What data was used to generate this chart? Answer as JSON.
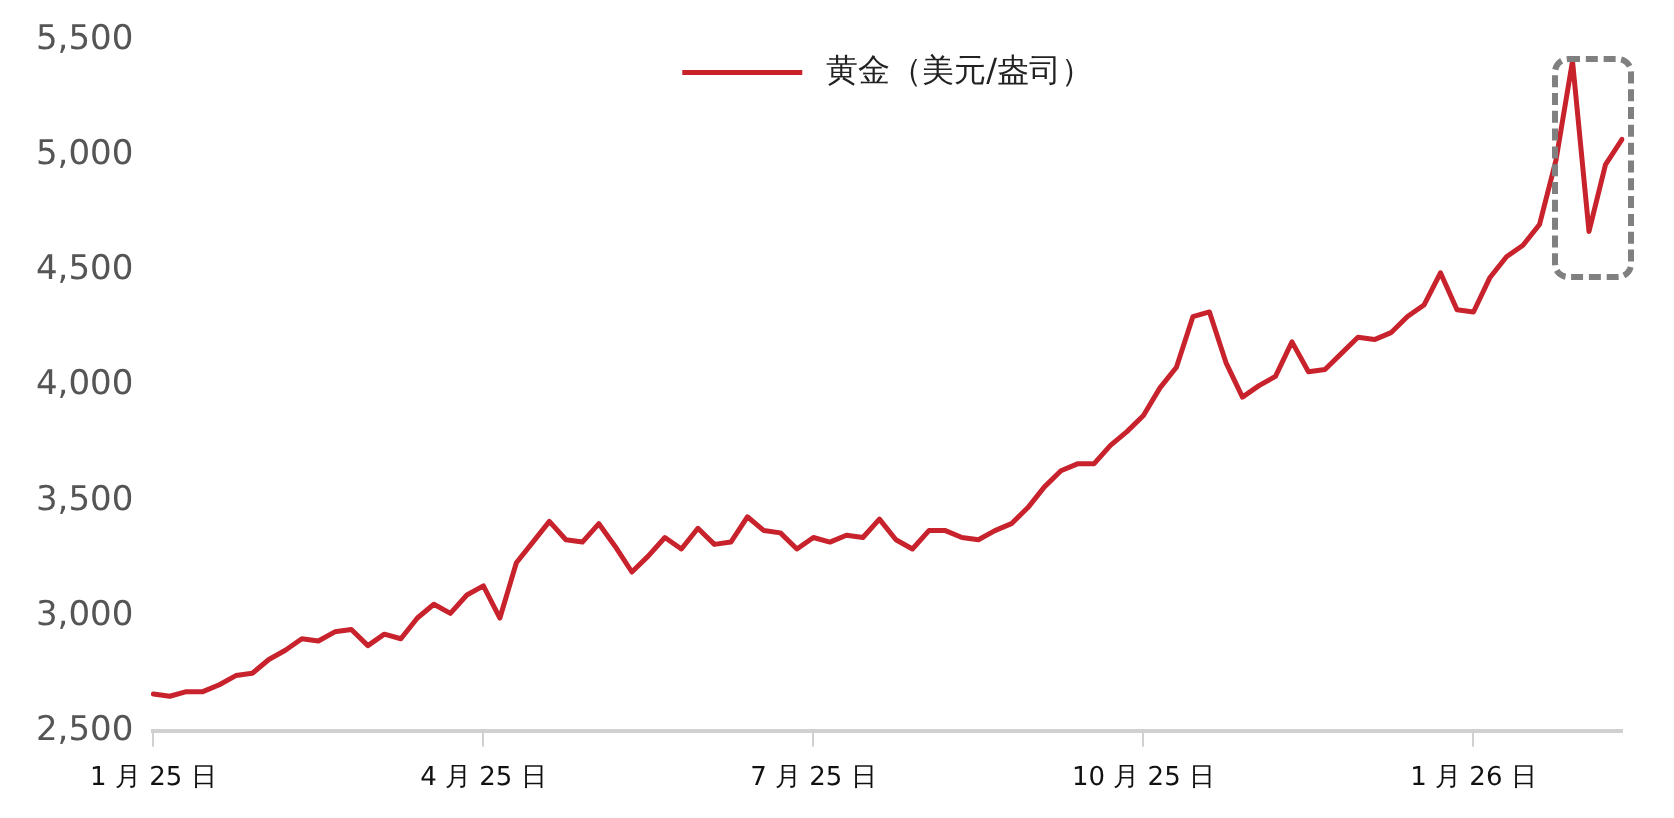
{
  "chart_data": {
    "type": "line",
    "categories": [
      "1 月 25 日",
      null,
      null,
      null,
      null,
      null,
      null,
      null,
      null,
      null,
      null,
      null,
      null,
      null,
      null,
      null,
      null,
      null,
      null,
      null,
      "4 月 25 日",
      null,
      null,
      null,
      null,
      null,
      null,
      null,
      null,
      null,
      null,
      null,
      null,
      null,
      null,
      null,
      null,
      null,
      null,
      null,
      "7 月 25 日",
      null,
      null,
      null,
      null,
      null,
      null,
      null,
      null,
      null,
      null,
      null,
      null,
      null,
      null,
      null,
      null,
      null,
      null,
      null,
      "10 月 25 日",
      null,
      null,
      null,
      null,
      null,
      null,
      null,
      null,
      null,
      null,
      null,
      null,
      null,
      null,
      null,
      null,
      null,
      null,
      null,
      "1 月 26 日",
      null,
      null,
      null,
      null,
      null,
      null,
      null,
      null,
      null
    ],
    "series": [
      {
        "name": "黄金（美元/盎司）",
        "color": "#c8232c",
        "values": [
          2660,
          2650,
          2670,
          2670,
          2700,
          2740,
          2750,
          2810,
          2850,
          2900,
          2890,
          2930,
          2940,
          2870,
          2920,
          2900,
          2990,
          3050,
          3010,
          3090,
          3130,
          2990,
          3230,
          3320,
          3410,
          3330,
          3320,
          3400,
          3300,
          3190,
          3260,
          3340,
          3290,
          3380,
          3310,
          3320,
          3430,
          3370,
          3360,
          3290,
          3340,
          3320,
          3350,
          3340,
          3420,
          3330,
          3290,
          3370,
          3370,
          3340,
          3330,
          3370,
          3400,
          3470,
          3560,
          3630,
          3660,
          3660,
          3740,
          3800,
          3870,
          3990,
          4080,
          4300,
          4320,
          4100,
          3950,
          4000,
          4040,
          4190,
          4060,
          4070,
          4140,
          4210,
          4200,
          4230,
          4300,
          4350,
          4490,
          4330,
          4320,
          4470,
          4560,
          4610,
          4700,
          4980,
          5410,
          4670,
          4960,
          5070
        ]
      }
    ],
    "ylim": [
      2500,
      5500
    ],
    "yticks": [
      {
        "value": 2500,
        "label": "2,500"
      },
      {
        "value": 3000,
        "label": "3,000"
      },
      {
        "value": 3500,
        "label": "3,500"
      },
      {
        "value": 4000,
        "label": "4,000"
      },
      {
        "value": 4500,
        "label": "4,500"
      },
      {
        "value": 5000,
        "label": "5,000"
      },
      {
        "value": 5500,
        "label": "5,500"
      }
    ],
    "grid": false,
    "legend": "top",
    "line_style": "solid",
    "marker": "none"
  }
}
